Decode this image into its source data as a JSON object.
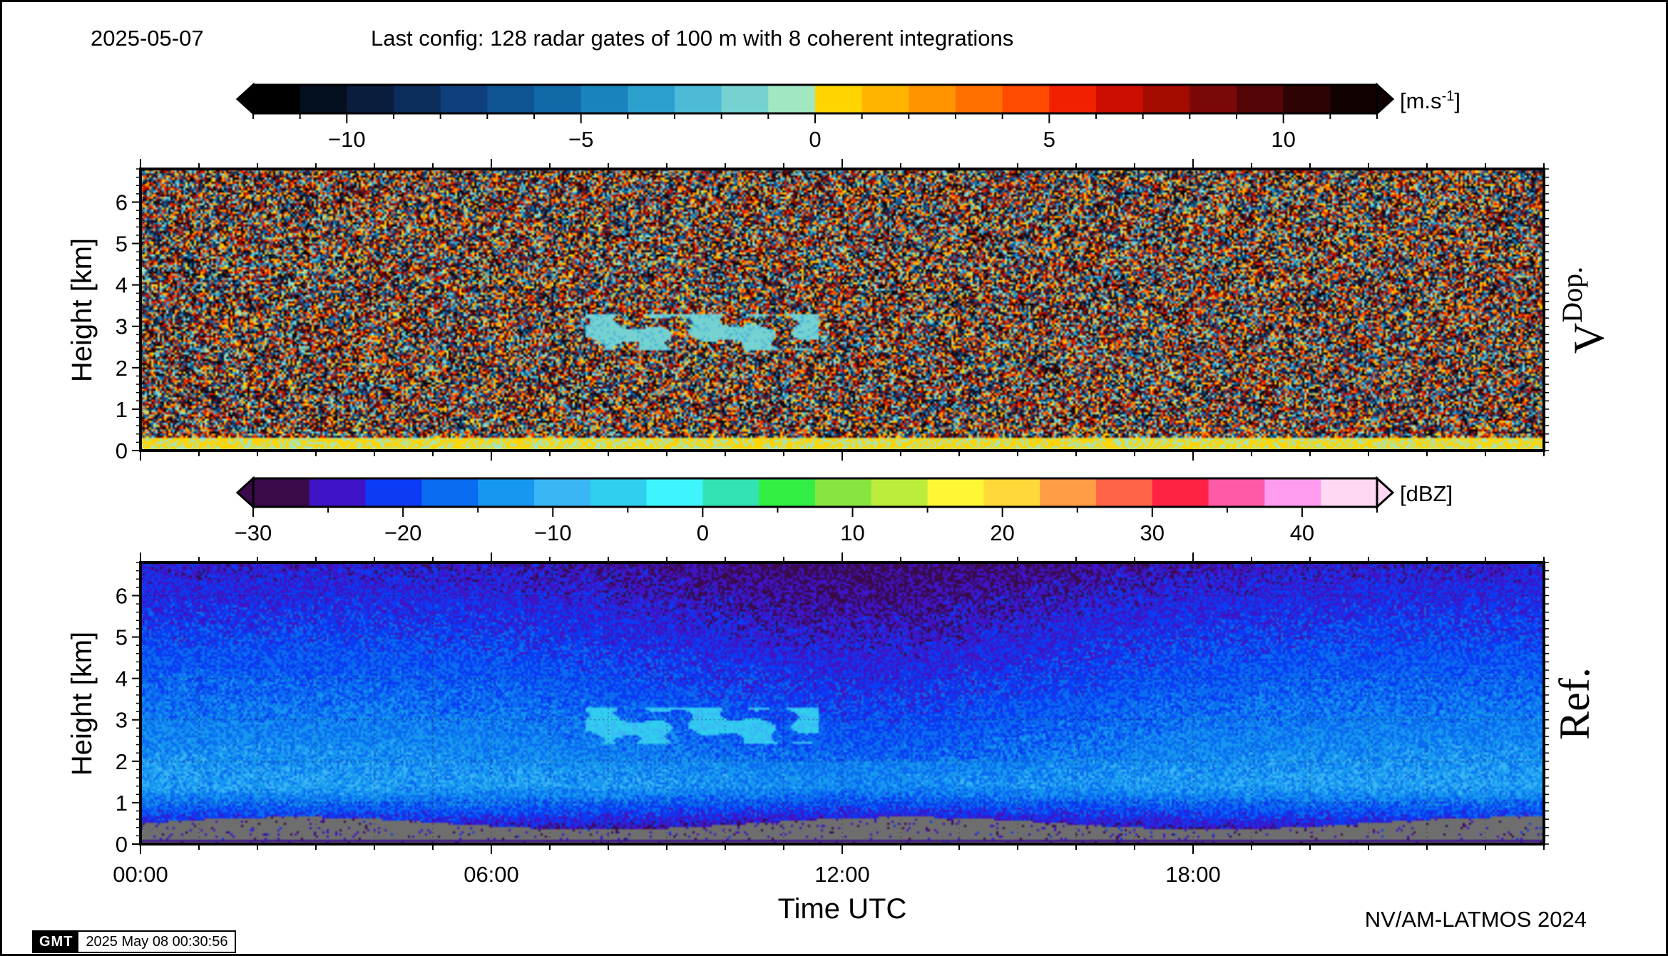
{
  "header": {
    "date": "2025-05-07",
    "config": "Last config: 128 radar gates of 100 m with 8 coherent integrations"
  },
  "footer": {
    "credit": "NV/AM-LATMOS 2024",
    "logo": "GMT",
    "timestamp": "2025 May 08 00:30:56"
  },
  "chart_data": [
    {
      "type": "heatmap",
      "title": "",
      "panel_label": "V",
      "panel_label_sub": "Dop.",
      "xlabel": "",
      "ylabel": "Height [km]",
      "xlim": [
        0,
        24
      ],
      "ylim": [
        0,
        6.8
      ],
      "x_ticks": [
        0,
        6,
        12,
        18
      ],
      "x_tick_labels": [],
      "y_ticks": [
        0,
        1,
        2,
        3,
        4,
        5,
        6
      ],
      "y_tick_labels": [
        "0",
        "1",
        "2",
        "3",
        "4",
        "5",
        "6"
      ],
      "grid": false,
      "colorbar": {
        "unit": "[m.s",
        "unit_sup": "-1",
        "unit_end": "]",
        "range": [
          -12,
          12
        ],
        "ticks": [
          -10,
          -5,
          0,
          5,
          10
        ],
        "tick_labels": [
          "−10",
          "−5",
          "0",
          "5",
          "10"
        ],
        "colors": [
          "#000000",
          "#05101f",
          "#0a1d3d",
          "#0c2c5c",
          "#0e3f7c",
          "#0f5493",
          "#1169a8",
          "#1883bd",
          "#2ca0cd",
          "#4dbad6",
          "#76d1d1",
          "#a3e6c2",
          "#ffd400",
          "#ffb400",
          "#ff9400",
          "#ff7000",
          "#ff4a00",
          "#f02000",
          "#cc0e00",
          "#a30a00",
          "#7a0808",
          "#520606",
          "#2e0303",
          "#120101"
        ]
      },
      "features": [
        {
          "x_start": 7.6,
          "x_end": 11.6,
          "y_start": 2.4,
          "y_end": 3.3,
          "value": -2
        }
      ]
    },
    {
      "type": "heatmap",
      "title": "",
      "panel_label": "Ref.",
      "xlabel": "Time UTC",
      "ylabel": "Height [km]",
      "xlim": [
        0,
        24
      ],
      "ylim": [
        0,
        6.8
      ],
      "x_ticks": [
        0,
        6,
        12,
        18
      ],
      "x_tick_labels": [
        "00:00",
        "06:00",
        "12:00",
        "18:00"
      ],
      "y_ticks": [
        0,
        1,
        2,
        3,
        4,
        5,
        6
      ],
      "y_tick_labels": [
        "0",
        "1",
        "2",
        "3",
        "4",
        "5",
        "6"
      ],
      "grid": true,
      "colorbar": {
        "unit": "[dBZ]",
        "range": [
          -30,
          45
        ],
        "ticks": [
          -30,
          -20,
          -10,
          0,
          10,
          20,
          30,
          40
        ],
        "tick_labels": [
          "−30",
          "−20",
          "−10",
          "0",
          "10",
          "20",
          "30",
          "40"
        ],
        "colors": [
          "#3a0a4a",
          "#3f14c6",
          "#0b3bf4",
          "#0a6cf0",
          "#1697f0",
          "#3ab6f5",
          "#2fcff0",
          "#3ef5ff",
          "#33e3b4",
          "#33ee44",
          "#88e440",
          "#bcec3c",
          "#fff636",
          "#ffd83a",
          "#ff9c44",
          "#ff6448",
          "#ff2244",
          "#ff5aa8",
          "#ff9cf0",
          "#ffd8f4"
        ]
      },
      "features": [
        {
          "x_start": 7.6,
          "x_end": 11.6,
          "y_start": 2.4,
          "y_end": 3.3,
          "value": -8
        }
      ]
    }
  ]
}
